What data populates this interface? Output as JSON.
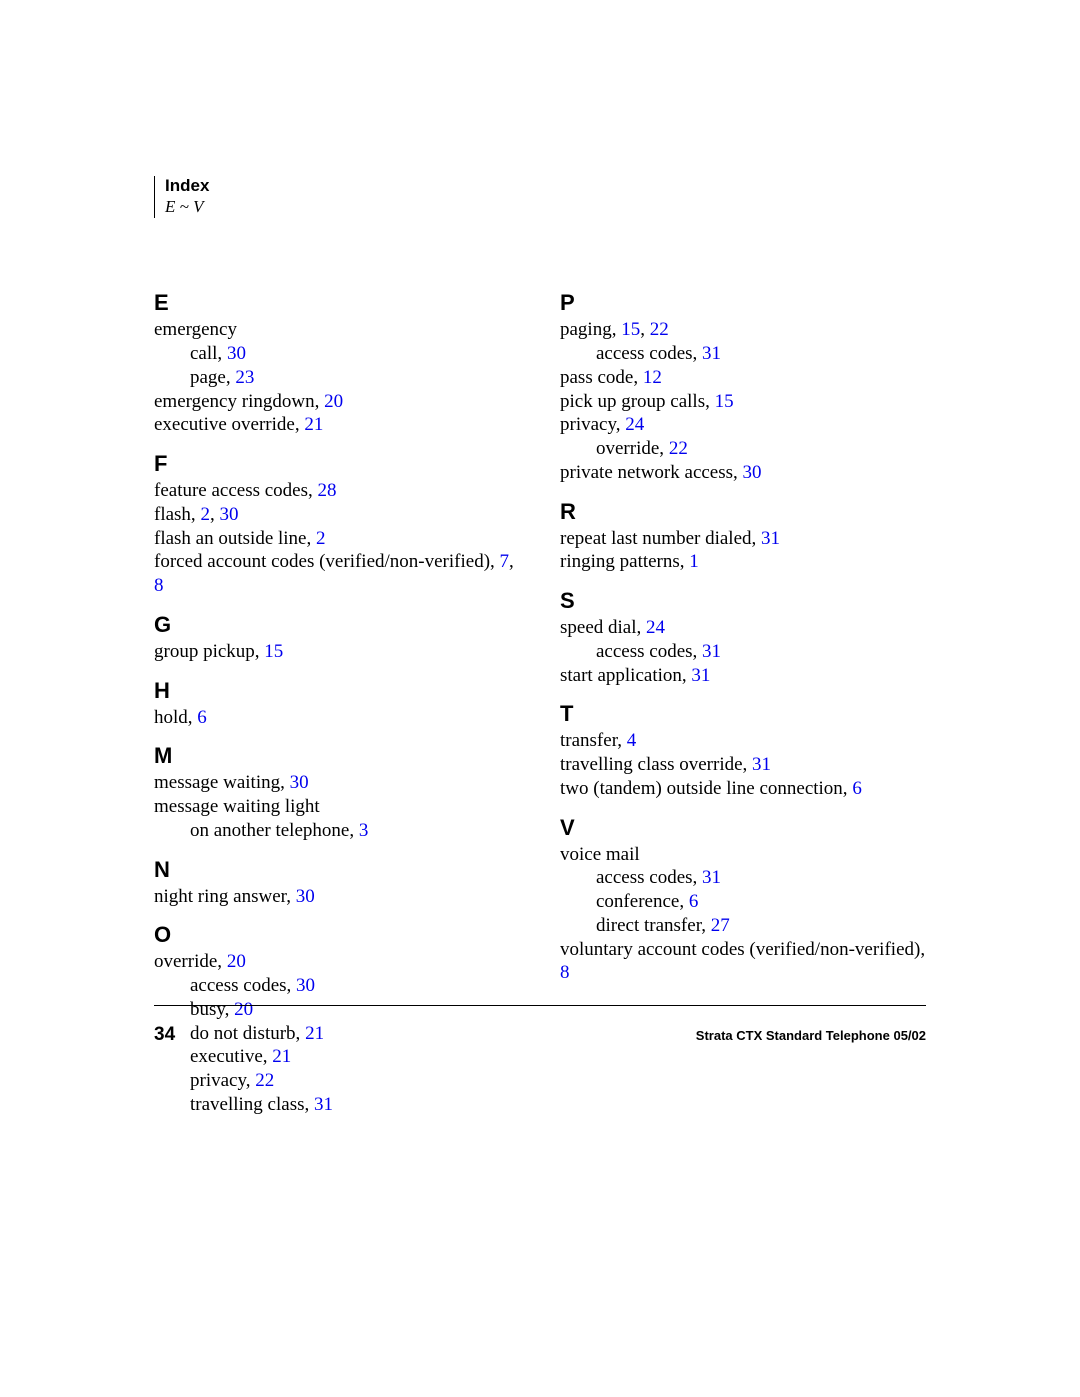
{
  "header": {
    "title": "Index",
    "range": "E ~ V"
  },
  "colors": {
    "link": "#0000ee",
    "text": "#000000",
    "background": "#ffffff"
  },
  "typography": {
    "body_family": "Times New Roman",
    "heading_family": "Arial",
    "letter_fontsize_pt": 16,
    "entry_fontsize_pt": 14
  },
  "left": {
    "E": {
      "e0_t": "emergency",
      "e0s0_t": "call,  ",
      "e0s0_p0": "30",
      "e0s1_t": "page,  ",
      "e0s1_p0": "23",
      "e1_t": "emergency ringdown,  ",
      "e1_p0": "20",
      "e2_t": "executive override,  ",
      "e2_p0": "21"
    },
    "F": {
      "e0_t": "feature access codes,  ",
      "e0_p0": "28",
      "e1_t": "flash,  ",
      "e1_p0": "2",
      "e1_p1": "30",
      "e2_t": "flash an outside line,  ",
      "e2_p0": "2",
      "e3_t": "forced account codes (verified/non-verified),  ",
      "e3_p0": "7",
      "e3_p1": "8"
    },
    "G": {
      "e0_t": "group pickup,  ",
      "e0_p0": "15"
    },
    "H": {
      "e0_t": "hold,  ",
      "e0_p0": "6"
    },
    "M": {
      "e0_t": "message waiting,  ",
      "e0_p0": "30",
      "e1_t": "message waiting light",
      "e1s0_t": "on another telephone,  ",
      "e1s0_p0": "3"
    },
    "N": {
      "e0_t": "night ring answer,  ",
      "e0_p0": "30"
    },
    "O": {
      "e0_t": "override,  ",
      "e0_p0": "20",
      "e0s0_t": "access codes,  ",
      "e0s0_p0": "30",
      "e0s1_t": "busy,  ",
      "e0s1_p0": "20",
      "e0s2_t": "do not disturb,  ",
      "e0s2_p0": "21",
      "e0s3_t": "executive,  ",
      "e0s3_p0": "21",
      "e0s4_t": "privacy,  ",
      "e0s4_p0": "22",
      "e0s5_t": "travelling class,  ",
      "e0s5_p0": "31"
    }
  },
  "right": {
    "P": {
      "e0_t": "paging,  ",
      "e0_p0": "15",
      "e0_p1": "22",
      "e0s0_t": "access codes,  ",
      "e0s0_p0": "31",
      "e1_t": "pass code,  ",
      "e1_p0": "12",
      "e2_t": "pick up group calls,  ",
      "e2_p0": "15",
      "e3_t": "privacy,  ",
      "e3_p0": "24",
      "e3s0_t": "override,  ",
      "e3s0_p0": "22",
      "e4_t": "private network access,  ",
      "e4_p0": "30"
    },
    "R": {
      "e0_t": "repeat last number dialed,  ",
      "e0_p0": "31",
      "e1_t": "ringing patterns,  ",
      "e1_p0": "1"
    },
    "S": {
      "e0_t": "speed dial,  ",
      "e0_p0": "24",
      "e0s0_t": "access codes,  ",
      "e0s0_p0": "31",
      "e1_t": "start application,  ",
      "e1_p0": "31"
    },
    "T": {
      "e0_t": "transfer,  ",
      "e0_p0": "4",
      "e1_t": "travelling class override,  ",
      "e1_p0": "31",
      "e2_t": "two (tandem) outside line connection,  ",
      "e2_p0": "6"
    },
    "V": {
      "e0_t": "voice mail",
      "e0s0_t": "access codes,  ",
      "e0s0_p0": "31",
      "e0s1_t": "conference,  ",
      "e0s1_p0": "6",
      "e0s2_t": "direct transfer,  ",
      "e0s2_p0": "27",
      "e1_t": "voluntary account codes  (verified/non-verified),  ",
      "e1_p0": "8"
    }
  },
  "letters": {
    "E": "E",
    "F": "F",
    "G": "G",
    "H": "H",
    "M": "M",
    "N": "N",
    "O": "O",
    "P": "P",
    "R": "R",
    "S": "S",
    "T": "T",
    "V": "V"
  },
  "sep": ", ",
  "footer": {
    "page_number": "34",
    "doc_title": "Strata CTX Standard Telephone   05/02"
  }
}
